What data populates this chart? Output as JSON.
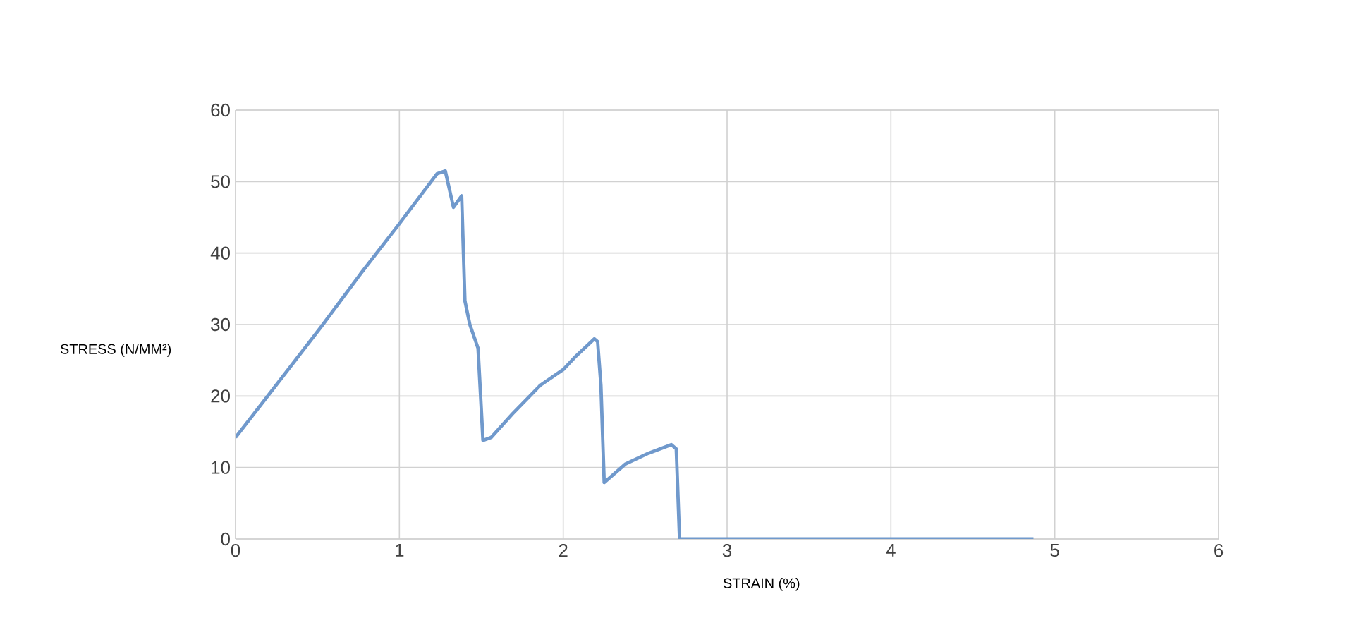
{
  "chart_data": {
    "type": "line",
    "xlabel": "STRAIN (%)",
    "ylabel": "STRESS (N/MM²)",
    "xlim": [
      0,
      6
    ],
    "xticks": [
      0,
      1,
      2,
      3,
      4,
      5,
      6
    ],
    "ylim": [
      0,
      60
    ],
    "yticks": [
      0,
      10,
      20,
      30,
      40,
      50,
      60
    ],
    "grid": true,
    "marker": "none",
    "line_style": "solid",
    "series": [
      {
        "color": "#7099cc",
        "x": [
          0,
          0.22,
          0.52,
          0.77,
          0.99,
          1.23,
          1.28,
          1.33,
          1.38,
          1.4,
          1.43,
          1.48,
          1.51,
          1.56,
          1.69,
          1.86,
          2.0,
          2.07,
          2.19,
          2.21,
          2.23,
          2.25,
          2.38,
          2.52,
          2.66,
          2.69,
          2.71,
          4.87
        ],
        "values": [
          14.2,
          20.7,
          29.6,
          37.3,
          43.8,
          51.1,
          51.5,
          46.4,
          48.0,
          33.3,
          30.0,
          26.7,
          13.8,
          14.2,
          17.5,
          21.5,
          23.7,
          25.4,
          28.0,
          27.6,
          21.5,
          7.9,
          10.5,
          12.0,
          13.2,
          12.6,
          0,
          0
        ]
      }
    ]
  }
}
